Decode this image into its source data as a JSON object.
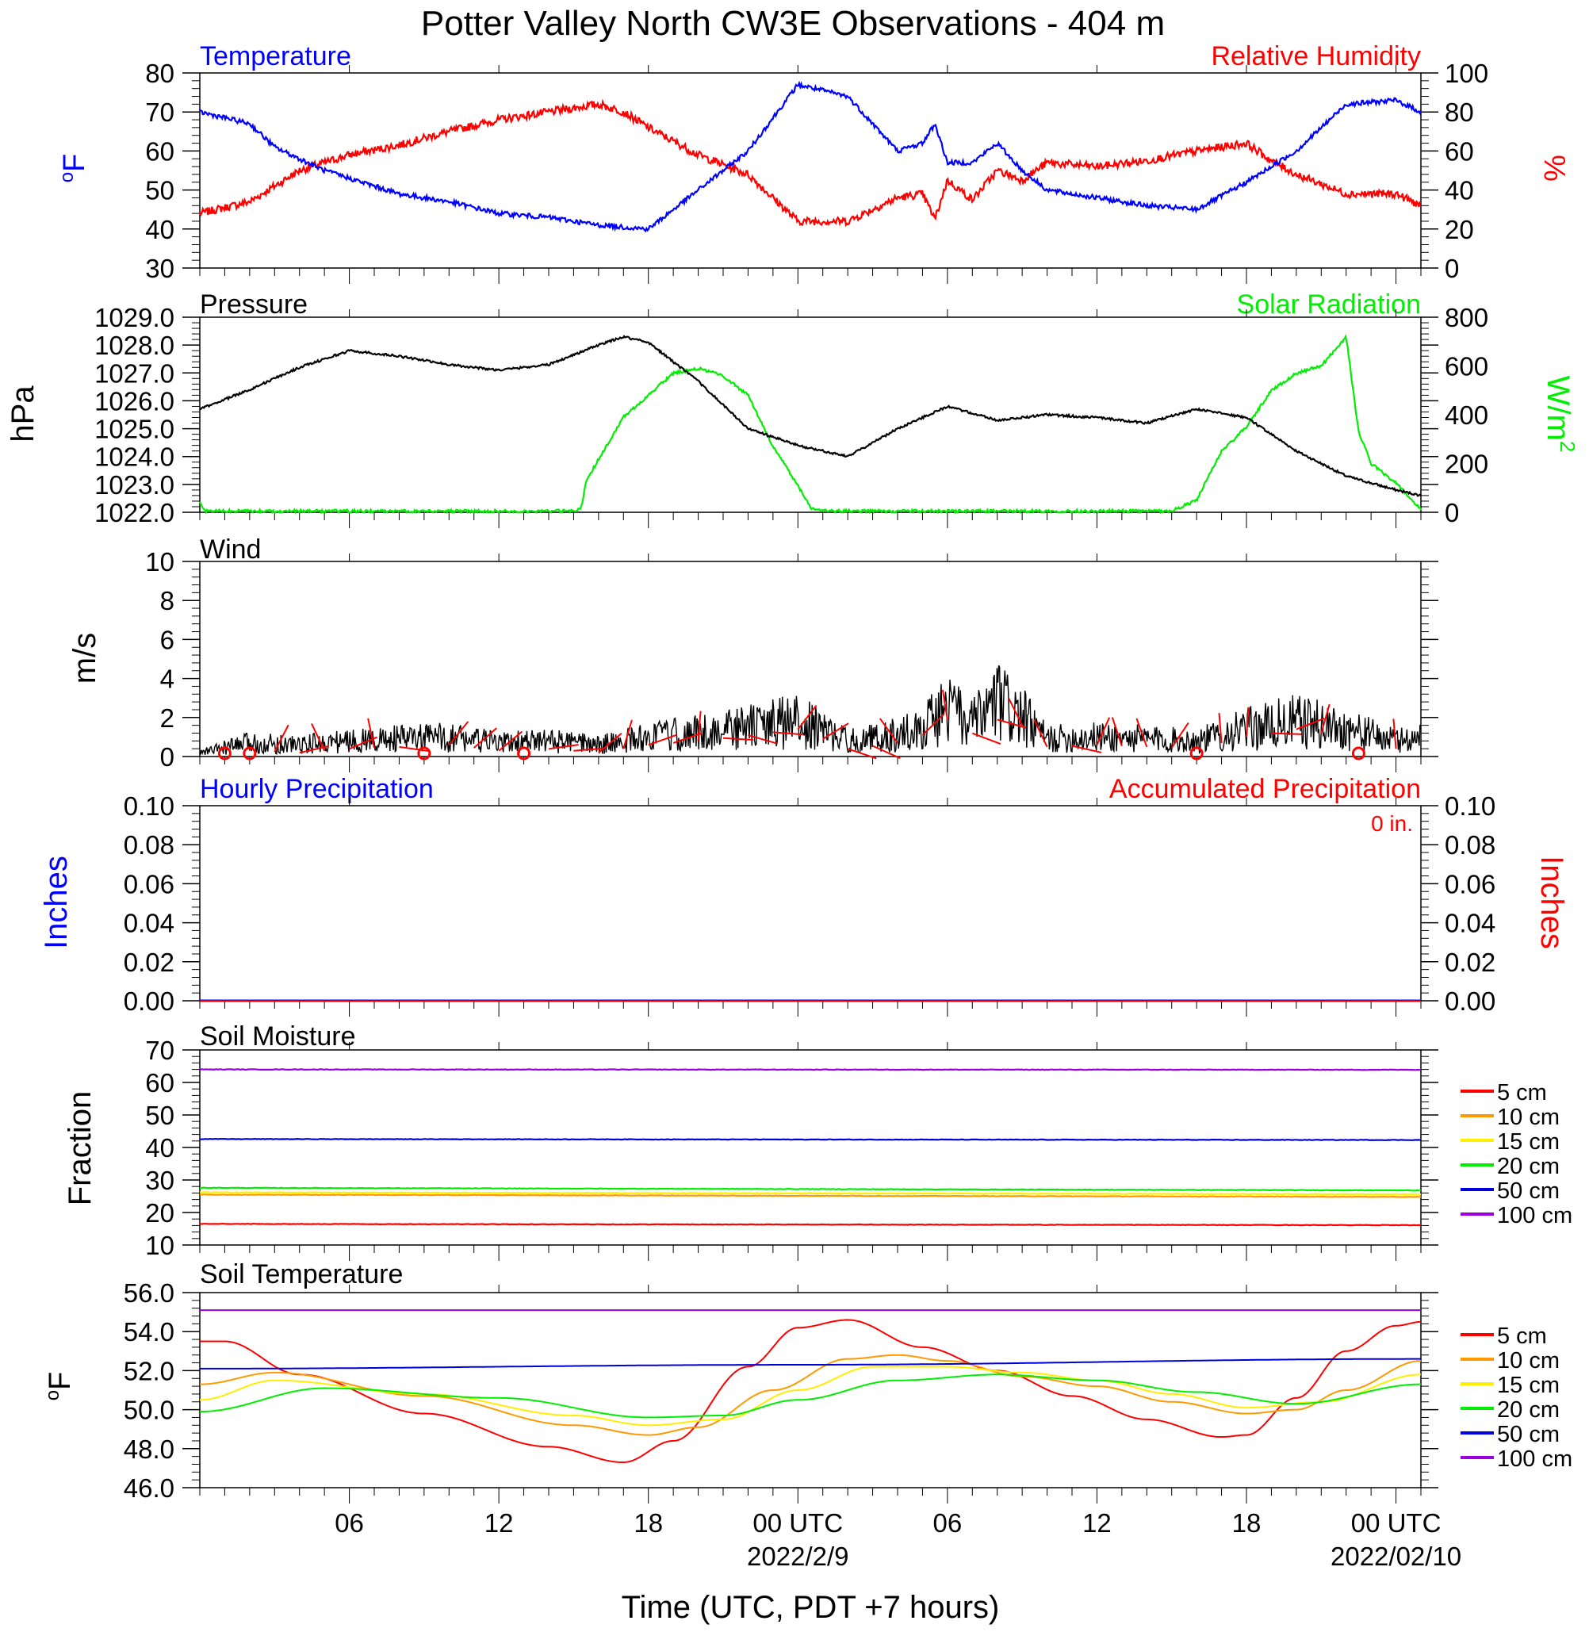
{
  "title": "Potter Valley North CW3E Observations - 404 m",
  "xlabel": "Time (UTC, PDT +7 hours)",
  "x_axis": {
    "range_hours": [
      -24,
      25
    ],
    "ticks": [
      {
        "h": -18,
        "label": "06",
        "date": ""
      },
      {
        "h": -12,
        "label": "12",
        "date": ""
      },
      {
        "h": -6,
        "label": "18",
        "date": ""
      },
      {
        "h": 0,
        "label": "00 UTC",
        "date": "2022/2/9"
      },
      {
        "h": 6,
        "label": "06",
        "date": ""
      },
      {
        "h": 12,
        "label": "12",
        "date": ""
      },
      {
        "h": 18,
        "label": "18",
        "date": ""
      },
      {
        "h": 24,
        "label": "00 UTC",
        "date": "2022/02/10"
      }
    ]
  },
  "colors": {
    "temperature": "#0000ff",
    "humidity": "#ff0000",
    "pressure": "#000000",
    "solar": "#00ee00",
    "wind": "#000000",
    "barbs": "#ff0000",
    "hourly_precip": "#0000ff",
    "accum_precip": "#ff0000"
  },
  "panels": {
    "temp_rh": {
      "left_title": "Temperature",
      "right_title": "Relative Humidity",
      "left_unit": "°F",
      "left_unit_base": "o",
      "left_unit_main": "F",
      "right_unit": "%",
      "left_ticks": [
        "80",
        "70",
        "60",
        "50",
        "40",
        "30"
      ],
      "right_ticks": [
        "100",
        "80",
        "60",
        "40",
        "20",
        "0"
      ],
      "left_range": [
        30,
        80
      ],
      "right_range": [
        0,
        100
      ]
    },
    "pressure": {
      "left_title": "Pressure",
      "right_title": "Solar Radiation",
      "left_unit": "hPa",
      "right_unit": "W/m²",
      "right_unit_base": "W/m",
      "right_unit_sup": "2",
      "left_ticks": [
        "1029.0",
        "1028.0",
        "1027.0",
        "1026.0",
        "1025.0",
        "1024.0",
        "1023.0",
        "1022.0"
      ],
      "right_ticks": [
        "800",
        "600",
        "400",
        "200",
        "0"
      ],
      "left_range": [
        1022,
        1029
      ],
      "right_range": [
        0,
        800
      ]
    },
    "wind": {
      "left_title": "Wind",
      "left_unit": "m/s",
      "left_ticks": [
        "10",
        "8",
        "6",
        "4",
        "2",
        "0"
      ],
      "left_range": [
        0,
        10
      ]
    },
    "precip": {
      "left_title": "Hourly Precipitation",
      "right_title": "Accumulated Precipitation",
      "accum_label": "0 in.",
      "left_unit": "Inches",
      "right_unit": "Inches",
      "left_ticks": [
        "0.10",
        "0.08",
        "0.06",
        "0.04",
        "0.02",
        "0.00"
      ],
      "right_ticks": [
        "0.10",
        "0.08",
        "0.06",
        "0.04",
        "0.02",
        "0.00"
      ],
      "left_range": [
        0,
        0.1
      ]
    },
    "soil_moisture": {
      "left_title": "Soil Moisture",
      "left_unit": "Fraction",
      "left_ticks": [
        "70",
        "60",
        "50",
        "40",
        "30",
        "20",
        "10"
      ],
      "left_range": [
        10,
        70
      ]
    },
    "soil_temp": {
      "left_title": "Soil Temperature",
      "left_unit": "°F",
      "left_unit_base": "o",
      "left_unit_main": "F",
      "left_ticks": [
        "56.0",
        "54.0",
        "52.0",
        "50.0",
        "48.0",
        "46.0"
      ],
      "left_range": [
        46,
        56
      ]
    }
  },
  "legend": [
    {
      "label": "5 cm",
      "color": "#ff0000"
    },
    {
      "label": "10 cm",
      "color": "#ff9900"
    },
    {
      "label": "15 cm",
      "color": "#ffee00"
    },
    {
      "label": "20 cm",
      "color": "#00ee00"
    },
    {
      "label": "50 cm",
      "color": "#0000dd"
    },
    {
      "label": "100 cm",
      "color": "#9900dd"
    }
  ],
  "chart_data": [
    {
      "type": "line",
      "name": "Temperature / Relative Humidity",
      "x_unit": "hours from 2022-02-09 00 UTC",
      "series": [
        {
          "name": "Temperature",
          "axis": "left",
          "x": [
            -24,
            -22,
            -21,
            -20,
            -19,
            -18,
            -16,
            -14,
            -12,
            -10,
            -8,
            -6,
            -4,
            -2,
            0,
            2,
            4,
            5,
            5.5,
            6,
            7,
            8,
            9,
            10,
            12,
            14,
            16,
            18,
            20,
            22,
            24,
            25
          ],
          "y": [
            70,
            67,
            61,
            58,
            55,
            53,
            49,
            47,
            44,
            43,
            41,
            40,
            50,
            60,
            77,
            74,
            60,
            62,
            67,
            57,
            57,
            62,
            55,
            50,
            48,
            46,
            45,
            52,
            60,
            72,
            73,
            70
          ]
        },
        {
          "name": "Relative Humidity",
          "axis": "right",
          "x": [
            -24,
            -22,
            -20,
            -18,
            -16,
            -14,
            -12,
            -10,
            -8,
            -7,
            -6,
            -4,
            -2,
            0,
            2,
            4,
            5,
            5.5,
            6,
            7,
            8,
            9,
            10,
            12,
            14,
            16,
            18,
            19,
            20,
            22,
            24,
            25
          ],
          "y": [
            28,
            34,
            50,
            58,
            63,
            70,
            76,
            80,
            84,
            80,
            72,
            58,
            48,
            24,
            24,
            36,
            38,
            25,
            45,
            35,
            50,
            45,
            54,
            52,
            55,
            60,
            64,
            55,
            48,
            38,
            38,
            32
          ]
        }
      ]
    },
    {
      "type": "line",
      "name": "Pressure / Solar Radiation",
      "series": [
        {
          "name": "Pressure",
          "axis": "left",
          "x": [
            -24,
            -22,
            -20,
            -18,
            -16,
            -14,
            -12,
            -10,
            -8,
            -7,
            -6,
            -4,
            -2,
            0,
            2,
            4,
            6,
            8,
            10,
            12,
            14,
            16,
            18,
            20,
            22,
            24,
            25
          ],
          "y": [
            1025.7,
            1026.4,
            1027.2,
            1027.8,
            1027.6,
            1027.3,
            1027.1,
            1027.3,
            1028.0,
            1028.3,
            1028.1,
            1026.7,
            1025.0,
            1024.4,
            1024.0,
            1025.0,
            1025.8,
            1025.3,
            1025.5,
            1025.4,
            1025.2,
            1025.7,
            1025.4,
            1024.2,
            1023.3,
            1022.8,
            1022.6
          ]
        },
        {
          "name": "Solar Radiation",
          "axis": "right",
          "x": [
            -24,
            -23.8,
            -9,
            -8.7,
            -8.5,
            -7,
            -5,
            -4,
            -3,
            -2,
            -1,
            0,
            0.5,
            1,
            5,
            10,
            15,
            16,
            17,
            18,
            19,
            20,
            21,
            22,
            22.5,
            23,
            24,
            25
          ],
          "y": [
            40,
            5,
            5,
            15,
            130,
            390,
            570,
            590,
            560,
            480,
            270,
            110,
            20,
            5,
            5,
            5,
            5,
            50,
            250,
            350,
            500,
            570,
            600,
            720,
            330,
            200,
            120,
            10
          ]
        }
      ]
    },
    {
      "type": "line",
      "name": "Wind",
      "series": [
        {
          "name": "Wind speed",
          "x": [
            -24,
            -22,
            -20,
            -18,
            -16,
            -14,
            -12,
            -10,
            -8,
            -6,
            -4,
            -2,
            0,
            2,
            4,
            5,
            6,
            7,
            8,
            9,
            10,
            12,
            14,
            16,
            18,
            20,
            22,
            24,
            25
          ],
          "y": [
            0.2,
            0.7,
            0.6,
            0.8,
            0.9,
            1.0,
            0.7,
            0.8,
            0.6,
            1.0,
            1.2,
            1.5,
            1.8,
            0.8,
            1.1,
            1.5,
            2.5,
            1.6,
            2.8,
            2.0,
            0.9,
            1.0,
            0.9,
            0.8,
            1.4,
            1.8,
            1.4,
            0.8,
            1.0
          ]
        }
      ]
    },
    {
      "type": "line",
      "name": "Precipitation",
      "series": [
        {
          "name": "Hourly Precipitation",
          "x": [
            -24,
            25
          ],
          "y": [
            0,
            0
          ]
        },
        {
          "name": "Accumulated Precipitation",
          "x": [
            -24,
            25
          ],
          "y": [
            0,
            0
          ]
        }
      ]
    },
    {
      "type": "line",
      "name": "Soil Moisture",
      "series": [
        {
          "name": "5 cm",
          "x": [
            -24,
            25
          ],
          "y": [
            16.5,
            16.1
          ]
        },
        {
          "name": "10 cm",
          "x": [
            -24,
            25
          ],
          "y": [
            25.5,
            24.8
          ]
        },
        {
          "name": "15 cm",
          "x": [
            -24,
            25
          ],
          "y": [
            26.2,
            25.6
          ]
        },
        {
          "name": "20 cm",
          "x": [
            -24,
            25
          ],
          "y": [
            27.6,
            26.8
          ]
        },
        {
          "name": "50 cm",
          "x": [
            -24,
            25
          ],
          "y": [
            42.6,
            42.3
          ]
        },
        {
          "name": "100 cm",
          "x": [
            -24,
            25
          ],
          "y": [
            64.0,
            63.9
          ]
        }
      ]
    },
    {
      "type": "line",
      "name": "Soil Temperature",
      "series": [
        {
          "name": "5 cm",
          "x": [
            -24,
            -23,
            -20,
            -15,
            -10,
            -7,
            -5,
            -2,
            0,
            2,
            5,
            8,
            11,
            14,
            17,
            18,
            20,
            22,
            24,
            25
          ],
          "y": [
            53.5,
            53.5,
            51.8,
            49.8,
            48.1,
            47.3,
            48.4,
            52.2,
            54.2,
            54.6,
            53.2,
            52.0,
            50.7,
            49.5,
            48.6,
            48.7,
            50.6,
            53.0,
            54.3,
            54.5
          ]
        },
        {
          "name": "10 cm",
          "x": [
            -24,
            -21,
            -15,
            -9,
            -6,
            -4,
            -1,
            2,
            4,
            6,
            9,
            12,
            15,
            18,
            20,
            22,
            25
          ],
          "y": [
            51.3,
            51.9,
            50.7,
            49.2,
            48.7,
            49.1,
            51.0,
            52.6,
            52.8,
            52.5,
            51.7,
            51.2,
            50.4,
            49.8,
            50.0,
            51.0,
            52.5
          ]
        },
        {
          "name": "15 cm",
          "x": [
            -24,
            -21,
            -15,
            -9,
            -6,
            -3,
            0,
            3,
            6,
            9,
            12,
            15,
            18,
            21,
            25
          ],
          "y": [
            50.5,
            51.5,
            50.8,
            49.7,
            49.2,
            49.5,
            51.0,
            52.2,
            52.2,
            51.9,
            51.5,
            50.8,
            50.1,
            50.4,
            51.8
          ]
        },
        {
          "name": "20 cm",
          "x": [
            -24,
            -19,
            -12,
            -6,
            -3,
            0,
            4,
            8,
            12,
            16,
            20,
            25
          ],
          "y": [
            49.9,
            51.1,
            50.6,
            49.6,
            49.7,
            50.5,
            51.5,
            51.8,
            51.5,
            50.9,
            50.3,
            51.3
          ]
        },
        {
          "name": "50 cm",
          "x": [
            -24,
            0,
            25
          ],
          "y": [
            52.1,
            52.3,
            52.6
          ]
        },
        {
          "name": "100 cm",
          "x": [
            -24,
            0,
            25
          ],
          "y": [
            55.1,
            55.1,
            55.1
          ]
        }
      ]
    }
  ]
}
